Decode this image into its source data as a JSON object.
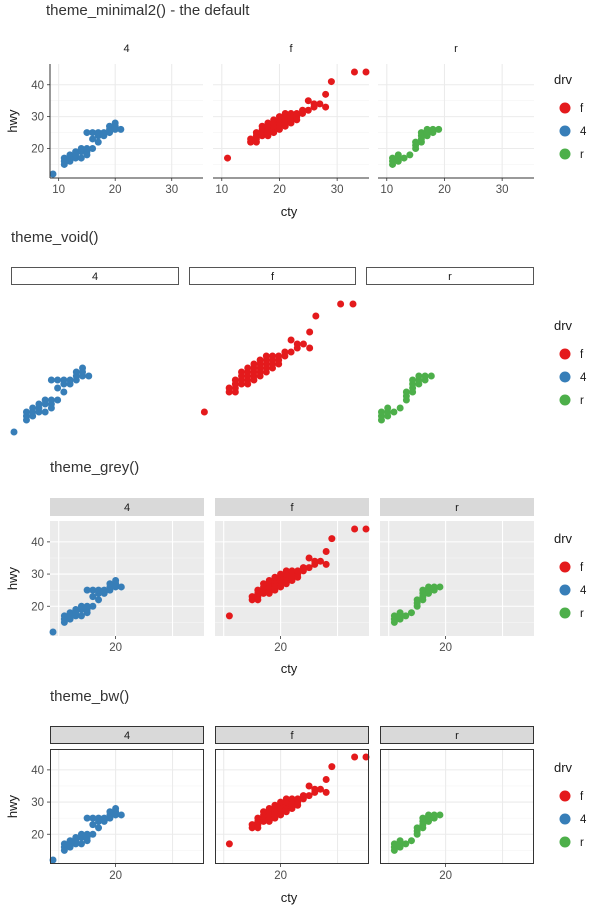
{
  "colors": {
    "f": "#e41a1c",
    "4": "#377eb8",
    "r": "#4daf4a"
  },
  "legend": {
    "title": "drv",
    "keys": [
      "f",
      "4",
      "r"
    ]
  },
  "chart_data": [
    {
      "type": "scatter",
      "title": "theme_minimal2() - the default",
      "theme": "minimal2",
      "facets": [
        "4",
        "f",
        "r"
      ],
      "xlabel": "cty",
      "ylabel": "hwy",
      "x_ticks": [
        10,
        20,
        30
      ],
      "y_ticks": [
        20,
        30,
        40
      ],
      "xlim": [
        9,
        35
      ],
      "ylim": [
        12,
        44
      ],
      "grid": true,
      "legend_position": "right"
    },
    {
      "type": "scatter",
      "title": "theme_void()",
      "theme": "void",
      "facets": [
        "4",
        "f",
        "r"
      ],
      "xlabel": "",
      "ylabel": "",
      "x_ticks": [],
      "y_ticks": [],
      "xlim": [
        9,
        35
      ],
      "ylim": [
        12,
        44
      ],
      "grid": false,
      "legend_position": "right"
    },
    {
      "type": "scatter",
      "title": "theme_grey()",
      "theme": "grey",
      "facets": [
        "4",
        "f",
        "r"
      ],
      "xlabel": "cty",
      "ylabel": "hwy",
      "x_ticks": [
        20
      ],
      "y_ticks": [
        20,
        30,
        40
      ],
      "xlim": [
        9,
        35
      ],
      "ylim": [
        12,
        44
      ],
      "grid": true,
      "legend_position": "right"
    },
    {
      "type": "scatter",
      "title": "theme_bw()",
      "theme": "bw",
      "facets": [
        "4",
        "f",
        "r"
      ],
      "xlabel": "cty",
      "ylabel": "hwy",
      "x_ticks": [
        20
      ],
      "y_ticks": [
        20,
        30,
        40
      ],
      "xlim": [
        9,
        35
      ],
      "ylim": [
        12,
        44
      ],
      "grid": true,
      "legend_position": "right"
    }
  ],
  "points": {
    "4": [
      [
        9,
        12
      ],
      [
        11,
        15
      ],
      [
        11,
        16
      ],
      [
        11,
        17
      ],
      [
        12,
        16
      ],
      [
        12,
        17
      ],
      [
        12,
        18
      ],
      [
        13,
        17
      ],
      [
        13,
        18
      ],
      [
        13,
        19
      ],
      [
        14,
        17
      ],
      [
        14,
        19
      ],
      [
        14,
        20
      ],
      [
        15,
        18
      ],
      [
        15,
        19
      ],
      [
        15,
        20
      ],
      [
        15,
        25
      ],
      [
        16,
        20
      ],
      [
        16,
        23
      ],
      [
        16,
        25
      ],
      [
        17,
        22
      ],
      [
        17,
        24
      ],
      [
        17,
        25
      ],
      [
        18,
        24
      ],
      [
        18,
        25
      ],
      [
        19,
        25
      ],
      [
        19,
        26
      ],
      [
        19,
        27
      ],
      [
        20,
        26
      ],
      [
        20,
        27
      ],
      [
        20,
        28
      ],
      [
        21,
        26
      ]
    ],
    "f": [
      [
        11,
        17
      ],
      [
        15,
        22
      ],
      [
        15,
        23
      ],
      [
        16,
        22
      ],
      [
        16,
        23
      ],
      [
        16,
        24
      ],
      [
        16,
        25
      ],
      [
        17,
        24
      ],
      [
        17,
        25
      ],
      [
        17,
        26
      ],
      [
        17,
        27
      ],
      [
        18,
        24
      ],
      [
        18,
        25
      ],
      [
        18,
        26
      ],
      [
        18,
        27
      ],
      [
        18,
        28
      ],
      [
        19,
        25
      ],
      [
        19,
        26
      ],
      [
        19,
        27
      ],
      [
        19,
        28
      ],
      [
        19,
        29
      ],
      [
        20,
        26
      ],
      [
        20,
        27
      ],
      [
        20,
        28
      ],
      [
        20,
        29
      ],
      [
        20,
        30
      ],
      [
        21,
        27
      ],
      [
        21,
        28
      ],
      [
        21,
        29
      ],
      [
        21,
        30
      ],
      [
        21,
        31
      ],
      [
        22,
        28
      ],
      [
        22,
        29
      ],
      [
        22,
        30
      ],
      [
        22,
        31
      ],
      [
        23,
        29
      ],
      [
        23,
        30
      ],
      [
        23,
        31
      ],
      [
        24,
        31
      ],
      [
        24,
        32
      ],
      [
        25,
        32
      ],
      [
        25,
        35
      ],
      [
        26,
        33
      ],
      [
        26,
        34
      ],
      [
        27,
        34
      ],
      [
        28,
        33
      ],
      [
        28,
        37
      ],
      [
        29,
        41
      ],
      [
        33,
        44
      ],
      [
        35,
        44
      ]
    ],
    "r": [
      [
        11,
        15
      ],
      [
        11,
        16
      ],
      [
        11,
        17
      ],
      [
        12,
        16
      ],
      [
        12,
        17
      ],
      [
        12,
        18
      ],
      [
        13,
        17
      ],
      [
        14,
        18
      ],
      [
        15,
        20
      ],
      [
        15,
        21
      ],
      [
        15,
        22
      ],
      [
        16,
        22
      ],
      [
        16,
        23
      ],
      [
        16,
        24
      ],
      [
        16,
        25
      ],
      [
        17,
        24
      ],
      [
        17,
        25
      ],
      [
        17,
        26
      ],
      [
        18,
        25
      ],
      [
        18,
        26
      ],
      [
        19,
        26
      ]
    ]
  }
}
